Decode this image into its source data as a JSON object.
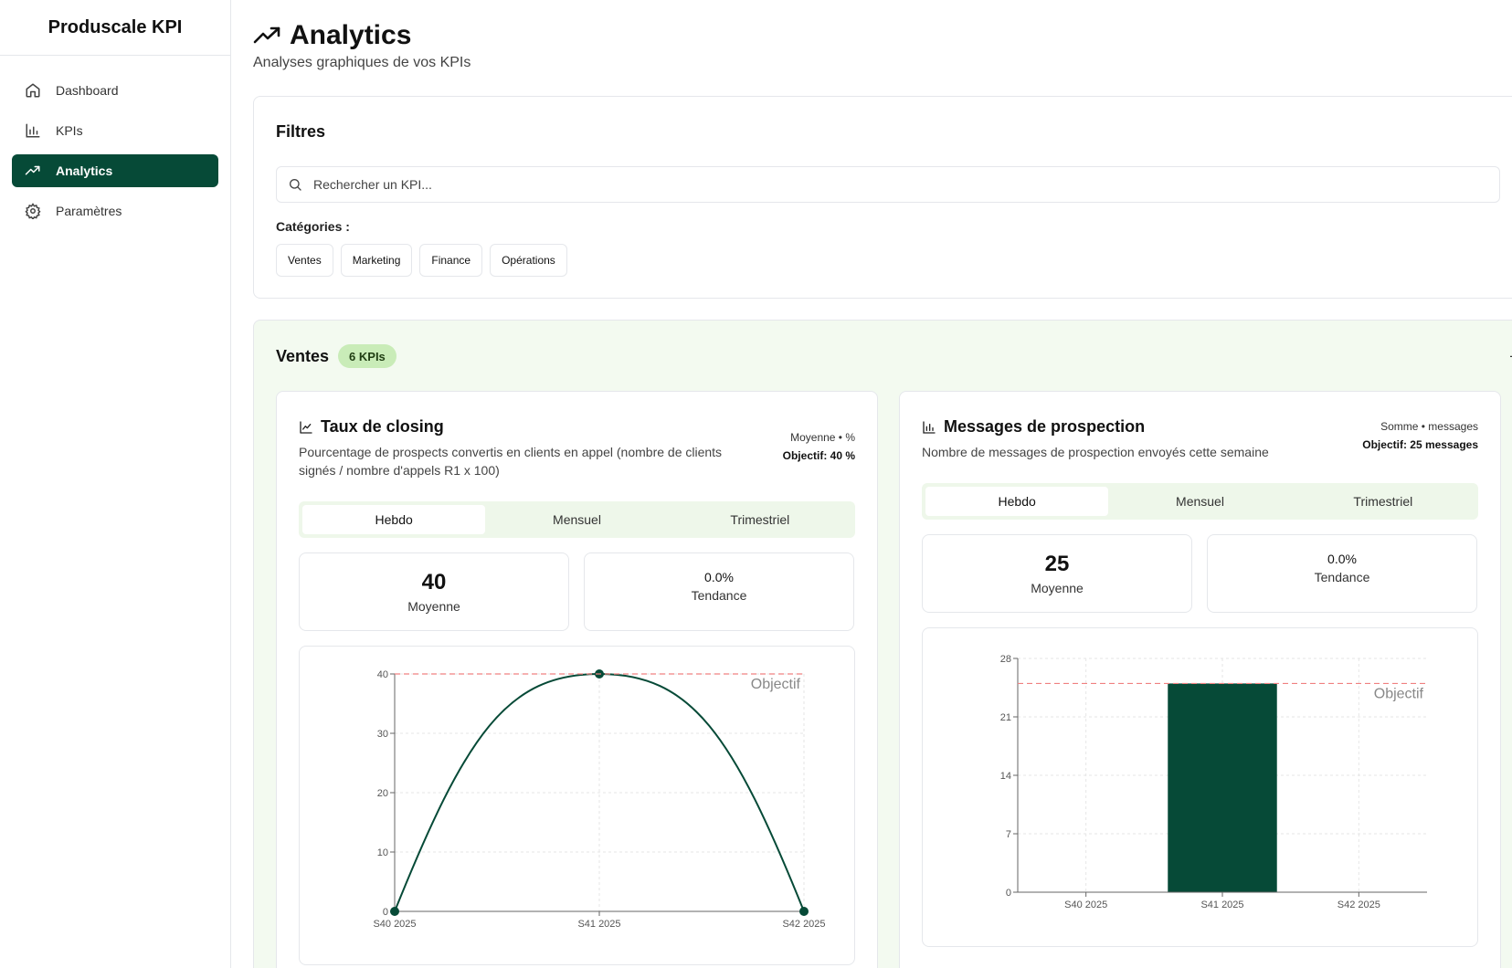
{
  "app": {
    "title": "Produscale KPI"
  },
  "sidebar": {
    "items": [
      {
        "label": "Dashboard",
        "icon": "home-icon",
        "active": false
      },
      {
        "label": "KPIs",
        "icon": "bar-chart-icon",
        "active": false
      },
      {
        "label": "Analytics",
        "icon": "trending-up-icon",
        "active": true
      },
      {
        "label": "Paramètres",
        "icon": "gear-icon",
        "active": false
      }
    ]
  },
  "header": {
    "title": "Analytics",
    "subtitle": "Analyses graphiques de vos KPIs"
  },
  "filters": {
    "title": "Filtres",
    "search_placeholder": "Rechercher un KPI...",
    "categories_label": "Catégories :",
    "categories": [
      "Ventes",
      "Marketing",
      "Finance",
      "Opérations"
    ]
  },
  "section": {
    "title": "Ventes",
    "badge": "6 KPIs",
    "collapse_label": "–"
  },
  "colors": {
    "accent": "#064a37",
    "goal_line": "#f08080",
    "section_bg": "#f3faf0",
    "badge_bg": "#c9ecb8"
  },
  "cards": [
    {
      "title": "Taux de closing",
      "icon": "line-chart-icon",
      "description": "Pourcentage de prospects convertis en clients en appel (nombre de clients signés / nombre d'appels R1 x 100)",
      "meta": "Moyenne • %",
      "objective": "Objectif: 40 %",
      "tabs": [
        "Hebdo",
        "Mensuel",
        "Trimestriel"
      ],
      "active_tab": "Hebdo",
      "stat_main_value": "40",
      "stat_main_label": "Moyenne",
      "stat_trend_value": "0.0%",
      "stat_trend_label": "Tendance"
    },
    {
      "title": "Messages de prospection",
      "icon": "bar-chart-icon",
      "description": "Nombre de messages de prospection envoyés cette semaine",
      "meta": "Somme • messages",
      "objective": "Objectif: 25 messages",
      "tabs": [
        "Hebdo",
        "Mensuel",
        "Trimestriel"
      ],
      "active_tab": "Hebdo",
      "stat_main_value": "25",
      "stat_main_label": "Moyenne",
      "stat_trend_value": "0.0%",
      "stat_trend_label": "Tendance"
    }
  ],
  "chart_data": [
    {
      "type": "line",
      "categories": [
        "S40 2025",
        "S41 2025",
        "S42 2025"
      ],
      "values": [
        0,
        40,
        0
      ],
      "ylim": [
        0,
        40
      ],
      "yticks": [
        0,
        10,
        20,
        30,
        40
      ],
      "goal": 40,
      "goal_label": "Objectif",
      "grid": true
    },
    {
      "type": "bar",
      "categories": [
        "S40 2025",
        "S41 2025",
        "S42 2025"
      ],
      "values": [
        0,
        25,
        0
      ],
      "ylim": [
        0,
        28
      ],
      "yticks": [
        0,
        7,
        14,
        21,
        28
      ],
      "goal": 25,
      "goal_label": "Objectif",
      "grid": true
    }
  ]
}
